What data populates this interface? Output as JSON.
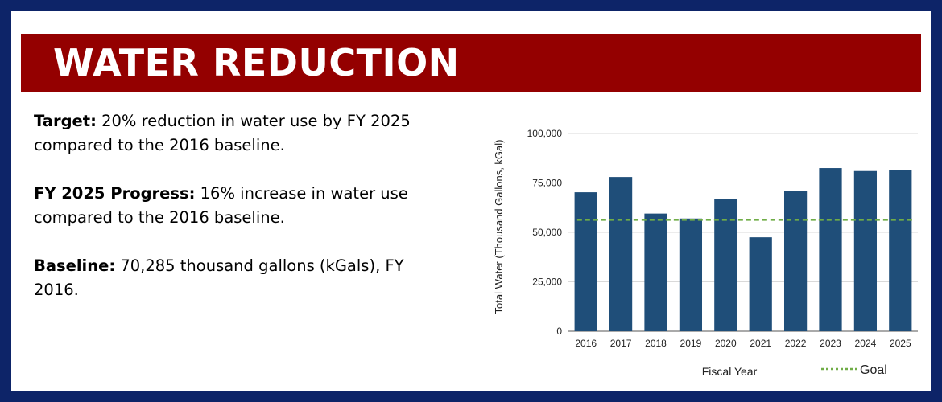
{
  "header": {
    "title": "WATER REDUCTION"
  },
  "info": {
    "target_label": "Target:",
    "target_text": "20% reduction in water use by FY 2025 compared to the 2016 baseline.",
    "progress_label": "FY 2025 Progress:",
    "progress_text": "16% increase in water use compared to the 2016 baseline.",
    "baseline_label": "Baseline:",
    "baseline_text": "70,285 thousand gallons (kGals), FY 2016."
  },
  "colors": {
    "banner": "#940000",
    "border": "#0d2468",
    "bar": "#1f4e79",
    "goal": "#70ad47"
  },
  "chart_data": {
    "type": "bar",
    "categories": [
      "2016",
      "2017",
      "2018",
      "2019",
      "2020",
      "2021",
      "2022",
      "2023",
      "2024",
      "2025"
    ],
    "values": [
      70285,
      78000,
      59500,
      57000,
      66800,
      47500,
      71000,
      82500,
      81000,
      81700
    ],
    "goal": {
      "name": "Goal",
      "value": 56228
    },
    "xlabel": "Fiscal Year",
    "ylabel": "Total Water (Thousand Gallons, kGal)",
    "ylim": [
      0,
      100000
    ],
    "yticks": [
      "0",
      "25,000",
      "50,000",
      "75,000",
      "100,000"
    ],
    "ytick_values": [
      0,
      25000,
      50000,
      75000,
      100000
    ],
    "grid": true,
    "legend": "bottom-right"
  }
}
